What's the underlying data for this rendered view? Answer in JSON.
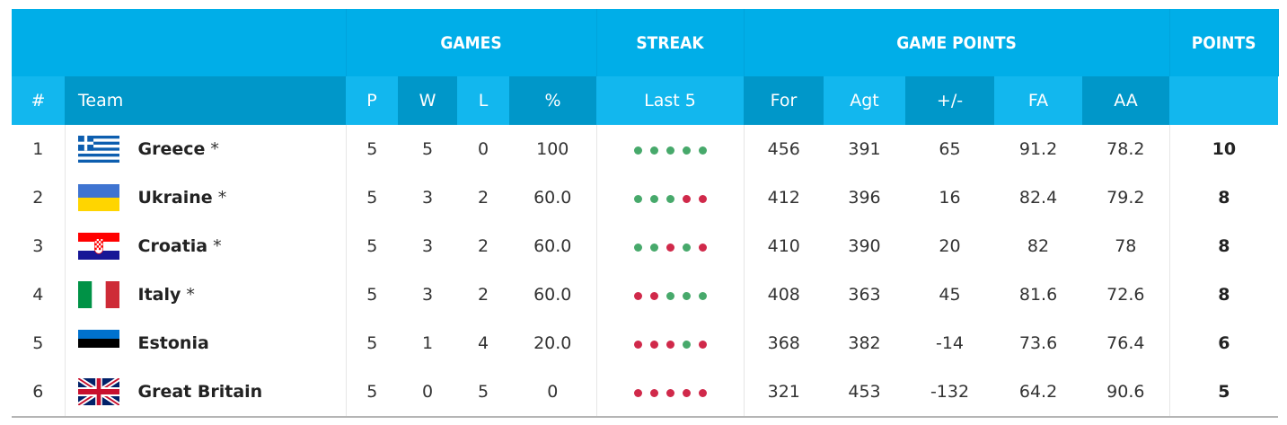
{
  "headers": {
    "groups": {
      "games": "GAMES",
      "streak": "STREAK",
      "game_points": "GAME POINTS",
      "points": "POINTS"
    },
    "columns": {
      "rank": "#",
      "team": "Team",
      "p": "P",
      "w": "W",
      "l": "L",
      "pct": "%",
      "last5": "Last 5",
      "for": "For",
      "agt": "Agt",
      "pm": "+/-",
      "fa": "FA",
      "aa": "AA"
    }
  },
  "colors": {
    "header_blue": "#00aee8",
    "sub_light": "#12b7ee",
    "sub_dark": "#0097c9",
    "win_dot": "#47a96b",
    "loss_dot": "#d0294a"
  },
  "rows": [
    {
      "rank": "1",
      "flag": "greece-flag-icon",
      "team": "Greece",
      "mark": "*",
      "p": "5",
      "w": "5",
      "l": "0",
      "pct": "100",
      "streak": [
        "W",
        "W",
        "W",
        "W",
        "W"
      ],
      "for": "456",
      "agt": "391",
      "pm": "65",
      "fa": "91.2",
      "aa": "78.2",
      "pts": "10"
    },
    {
      "rank": "2",
      "flag": "ukraine-flag-icon",
      "team": "Ukraine",
      "mark": "*",
      "p": "5",
      "w": "3",
      "l": "2",
      "pct": "60.0",
      "streak": [
        "W",
        "W",
        "W",
        "L",
        "L"
      ],
      "for": "412",
      "agt": "396",
      "pm": "16",
      "fa": "82.4",
      "aa": "79.2",
      "pts": "8"
    },
    {
      "rank": "3",
      "flag": "croatia-flag-icon",
      "team": "Croatia",
      "mark": "*",
      "p": "5",
      "w": "3",
      "l": "2",
      "pct": "60.0",
      "streak": [
        "W",
        "W",
        "L",
        "W",
        "L"
      ],
      "for": "410",
      "agt": "390",
      "pm": "20",
      "fa": "82",
      "aa": "78",
      "pts": "8"
    },
    {
      "rank": "4",
      "flag": "italy-flag-icon",
      "team": "Italy",
      "mark": "*",
      "p": "5",
      "w": "3",
      "l": "2",
      "pct": "60.0",
      "streak": [
        "L",
        "L",
        "W",
        "W",
        "W"
      ],
      "for": "408",
      "agt": "363",
      "pm": "45",
      "fa": "81.6",
      "aa": "72.6",
      "pts": "8"
    },
    {
      "rank": "5",
      "flag": "estonia-flag-icon",
      "team": "Estonia",
      "mark": "",
      "p": "5",
      "w": "1",
      "l": "4",
      "pct": "20.0",
      "streak": [
        "L",
        "L",
        "L",
        "W",
        "L"
      ],
      "for": "368",
      "agt": "382",
      "pm": "-14",
      "fa": "73.6",
      "aa": "76.4",
      "pts": "6"
    },
    {
      "rank": "6",
      "flag": "great-britain-flag-icon",
      "team": "Great Britain",
      "mark": "",
      "p": "5",
      "w": "0",
      "l": "5",
      "pct": "0",
      "streak": [
        "L",
        "L",
        "L",
        "L",
        "L"
      ],
      "for": "321",
      "agt": "453",
      "pm": "-132",
      "fa": "64.2",
      "aa": "90.6",
      "pts": "5"
    }
  ]
}
